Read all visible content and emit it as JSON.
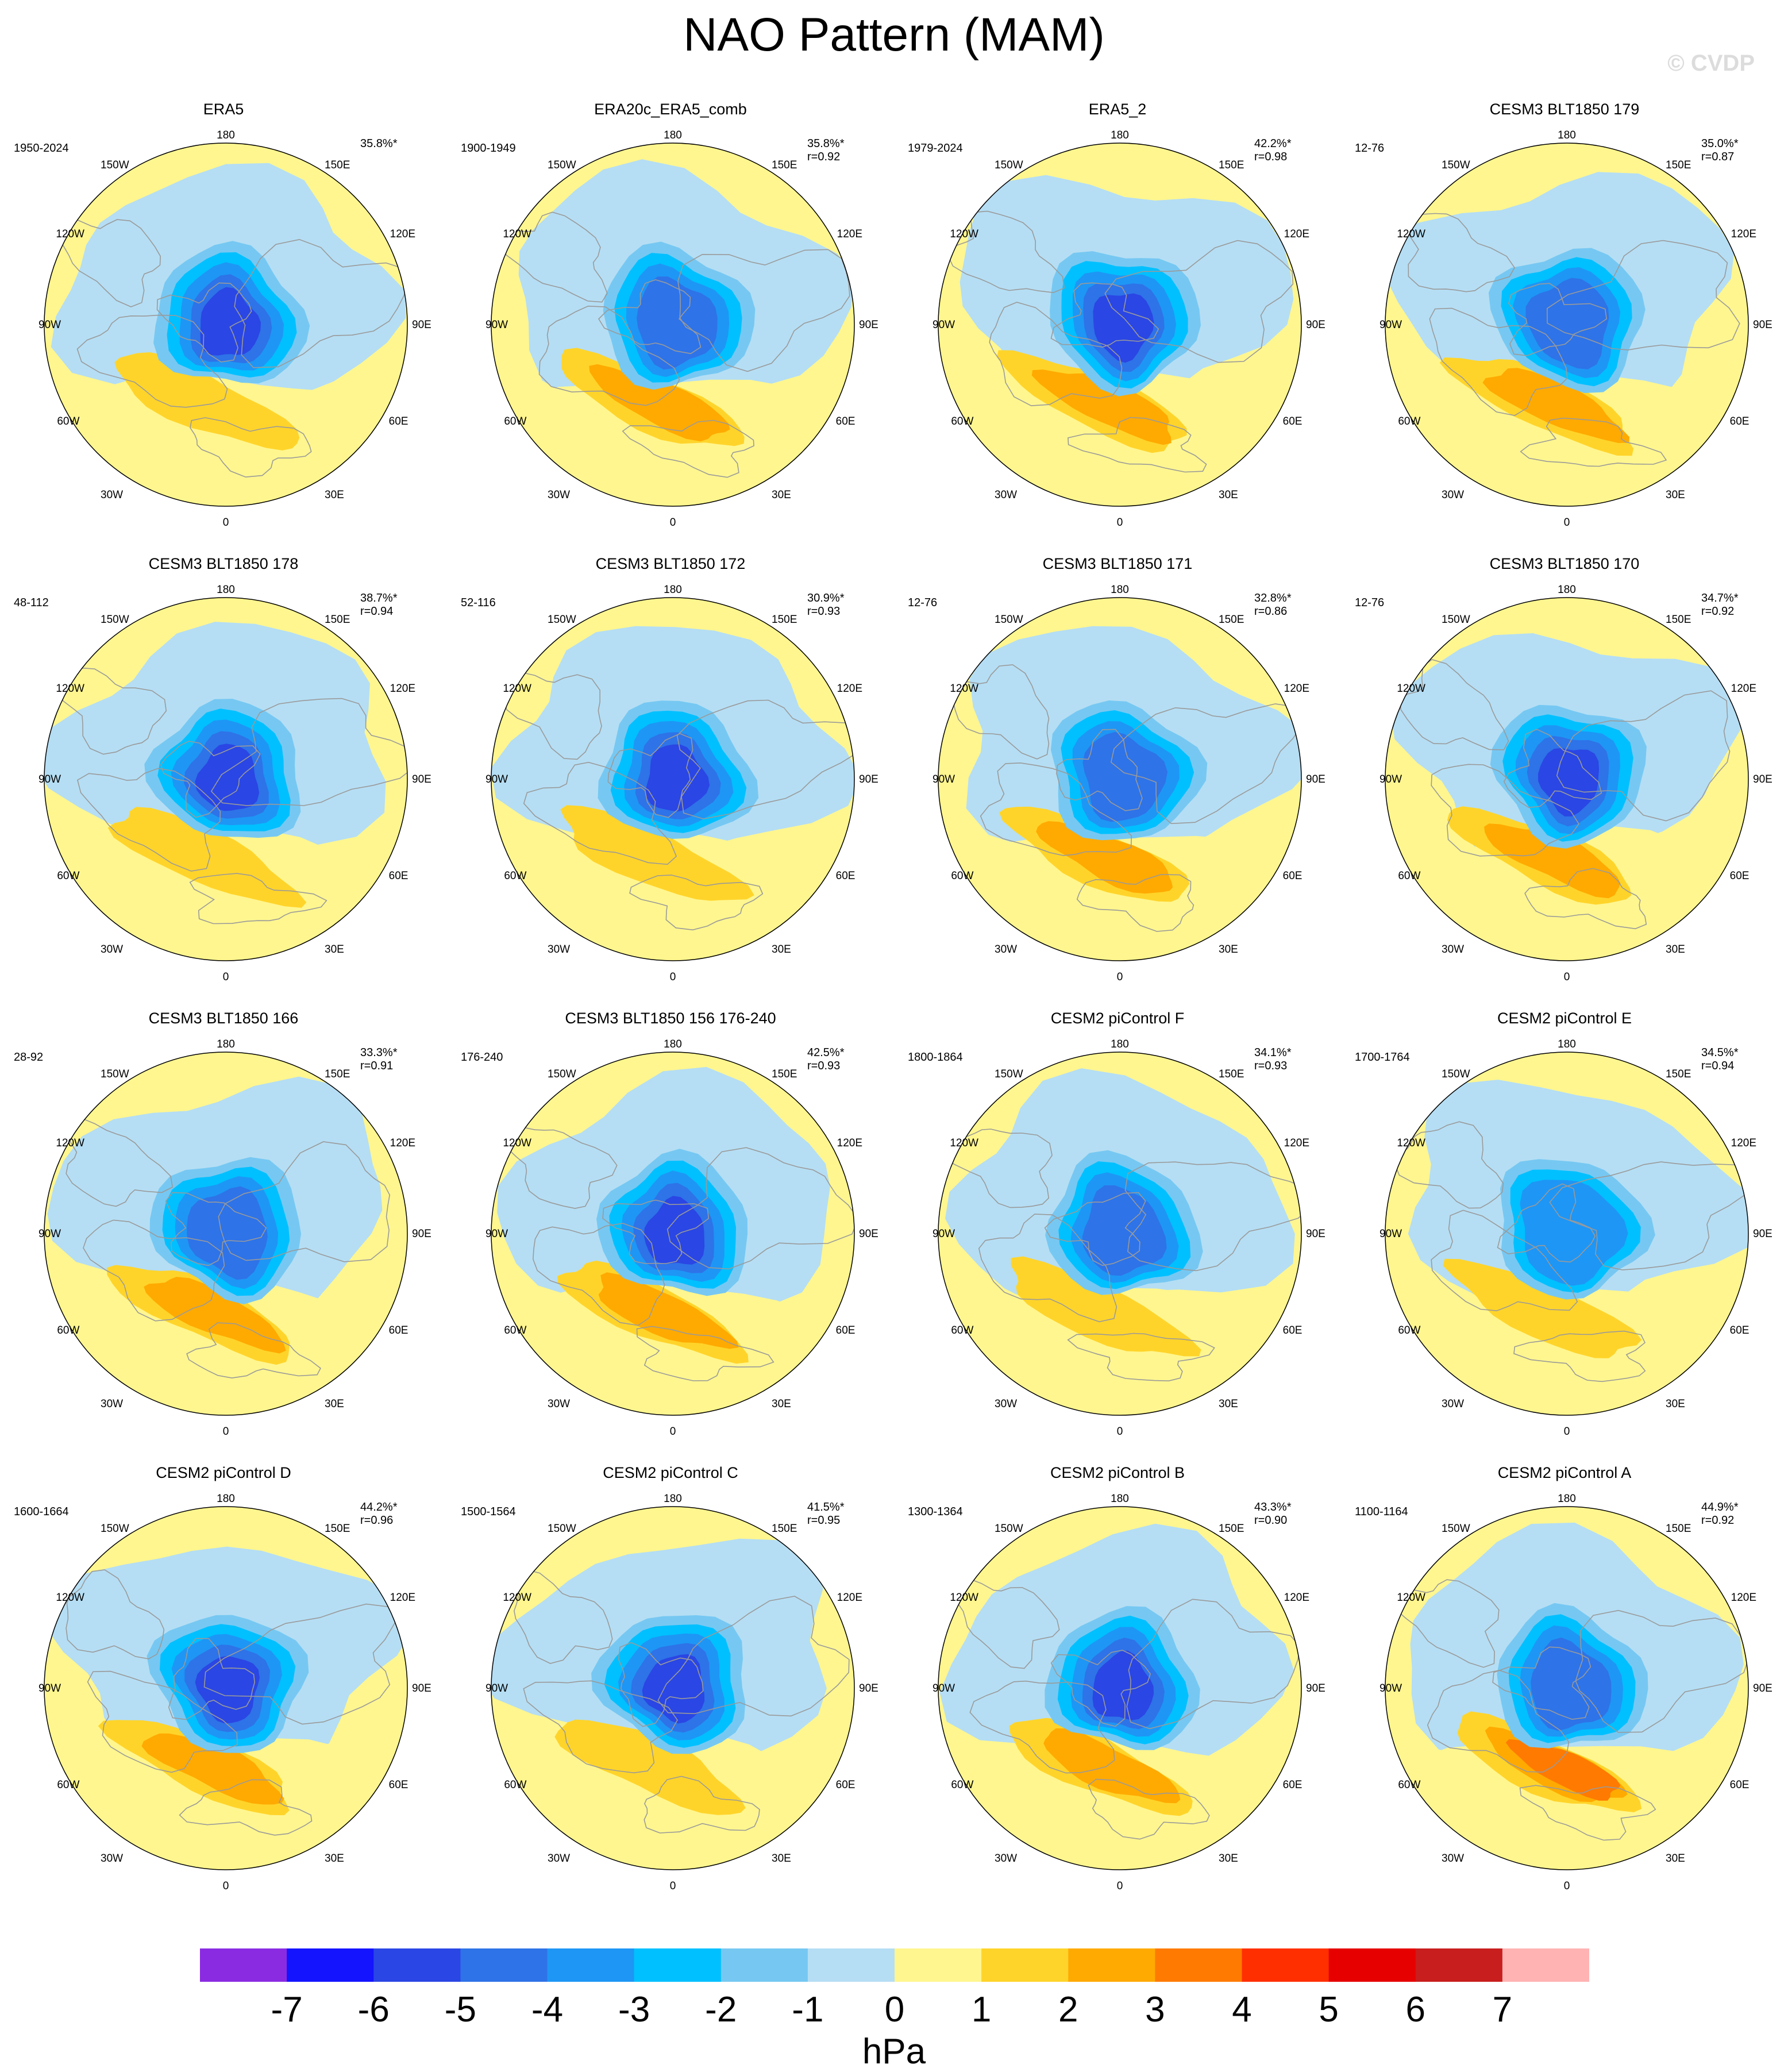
{
  "figure": {
    "title": "NAO Pattern (MAM)",
    "watermark": "© CVDP"
  },
  "colors": {
    "land": "#9a9a9a",
    "levels": [
      {
        "value": "-7",
        "color": "#8a2be2"
      },
      {
        "value": "-6",
        "color": "#1414ff"
      },
      {
        "value": "-5",
        "color": "#2a46e4"
      },
      {
        "value": "-4",
        "color": "#2e73e8"
      },
      {
        "value": "-3",
        "color": "#1e96f5"
      },
      {
        "value": "-2",
        "color": "#00c0ff"
      },
      {
        "value": "-1",
        "color": "#76c8f2"
      },
      {
        "value": "0",
        "color": "#b5def4"
      },
      {
        "value": "1",
        "color": "#fff68f"
      },
      {
        "value": "2",
        "color": "#ffd42a"
      },
      {
        "value": "3",
        "color": "#ffaa00"
      },
      {
        "value": "4",
        "color": "#ff7a00"
      },
      {
        "value": "5",
        "color": "#ff2f00"
      },
      {
        "value": "6",
        "color": "#e60000"
      },
      {
        "value": "7",
        "color": "#c81e1e"
      },
      {
        "value": "",
        "color": "#ffb3b3"
      }
    ]
  },
  "colorbar": {
    "units": "hPa",
    "labels": [
      "-7",
      "-6",
      "-5",
      "-4",
      "-3",
      "-2",
      "-1",
      "0",
      "1",
      "2",
      "3",
      "4",
      "5",
      "6",
      "7"
    ]
  },
  "longitude_labels": {
    "top": "180",
    "bottom": "0",
    "l150": "150W",
    "r150": "150E",
    "l120": "120W",
    "r120": "120E",
    "l90": "90W",
    "r90": "90E",
    "l60": "60W",
    "r60": "60E",
    "l30": "30W",
    "r30": "30E"
  },
  "panels": [
    {
      "title": "ERA5",
      "period": "1950-2024",
      "variance": "35.8%*",
      "r": "",
      "low_min": -5,
      "high_max": 2
    },
    {
      "title": "ERA20c_ERA5_comb",
      "period": "1900-1949",
      "variance": "35.8%*",
      "r": "r=0.92",
      "low_min": -4,
      "high_max": 3
    },
    {
      "title": "ERA5_2",
      "period": "1979-2024",
      "variance": "42.2%*",
      "r": "r=0.98",
      "low_min": -5,
      "high_max": 3
    },
    {
      "title": "CESM3 BLT1850 179",
      "period": "12-76",
      "variance": "35.0%*",
      "r": "r=0.87",
      "low_min": -4,
      "high_max": 3
    },
    {
      "title": "CESM3 BLT1850 178",
      "period": "48-112",
      "variance": "38.7%*",
      "r": "r=0.94",
      "low_min": -5,
      "high_max": 2
    },
    {
      "title": "CESM3 BLT1850 172",
      "period": "52-116",
      "variance": "30.9%*",
      "r": "r=0.93",
      "low_min": -5,
      "high_max": 2
    },
    {
      "title": "CESM3 BLT1850 171",
      "period": "12-76",
      "variance": "32.8%*",
      "r": "r=0.86",
      "low_min": -4,
      "high_max": 3
    },
    {
      "title": "CESM3 BLT1850 170",
      "period": "12-76",
      "variance": "34.7%*",
      "r": "r=0.92",
      "low_min": -5,
      "high_max": 3
    },
    {
      "title": "CESM3 BLT1850 166",
      "period": "28-92",
      "variance": "33.3%*",
      "r": "r=0.91",
      "low_min": -4,
      "high_max": 3
    },
    {
      "title": "CESM3 BLT1850 156 176-240",
      "period": "176-240",
      "variance": "42.5%*",
      "r": "r=0.93",
      "low_min": -5,
      "high_max": 3
    },
    {
      "title": "CESM2 piControl F",
      "period": "1800-1864",
      "variance": "34.1%*",
      "r": "r=0.93",
      "low_min": -4,
      "high_max": 2
    },
    {
      "title": "CESM2 piControl E",
      "period": "1700-1764",
      "variance": "34.5%*",
      "r": "r=0.94",
      "low_min": -3,
      "high_max": 2
    },
    {
      "title": "CESM2 piControl D",
      "period": "1600-1664",
      "variance": "44.2%*",
      "r": "r=0.96",
      "low_min": -5,
      "high_max": 3
    },
    {
      "title": "CESM2 piControl C",
      "period": "1500-1564",
      "variance": "41.5%*",
      "r": "r=0.95",
      "low_min": -5,
      "high_max": 2
    },
    {
      "title": "CESM2 piControl B",
      "period": "1300-1364",
      "variance": "43.3%*",
      "r": "r=0.90",
      "low_min": -5,
      "high_max": 3
    },
    {
      "title": "CESM2 piControl A",
      "period": "1100-1164",
      "variance": "44.9%*",
      "r": "r=0.92",
      "low_min": -4,
      "high_max": 4
    }
  ]
}
